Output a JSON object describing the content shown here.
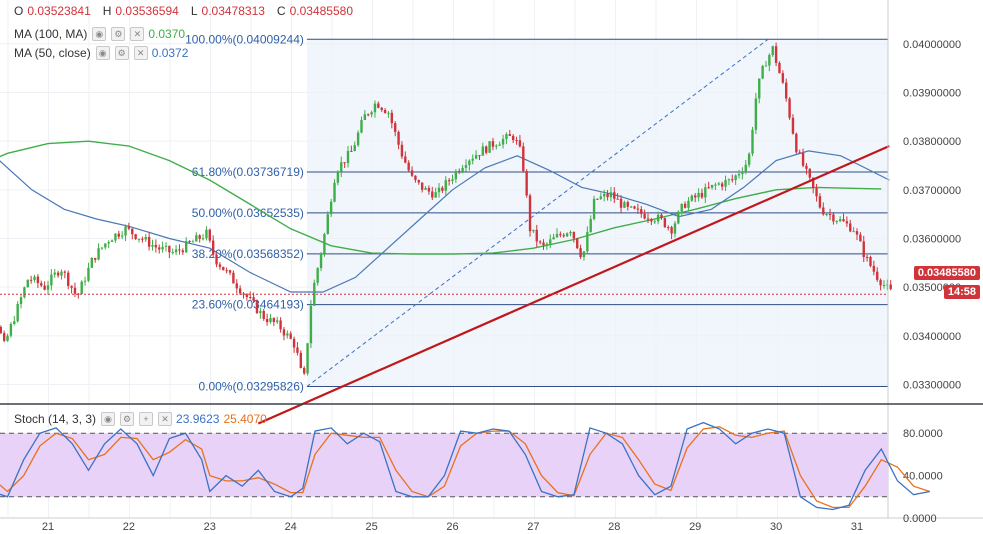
{
  "ohlc": {
    "o_label": "O",
    "o": "0.03523841",
    "h_label": "H",
    "h": "0.03536594",
    "l_label": "L",
    "l": "0.03478313",
    "c_label": "C",
    "c": "0.03485580"
  },
  "indicators": {
    "ma100": {
      "label": "MA (100, MA)",
      "value": "0.0370",
      "color": "#3fae49"
    },
    "ma50": {
      "label": "MA (50, close)",
      "value": "0.0372",
      "color": "#4a78b8"
    },
    "stoch": {
      "label": "Stoch (14, 3, 3)",
      "k": "23.9623",
      "d": "25.4070",
      "k_color": "#3a72c4",
      "d_color": "#e8711d"
    }
  },
  "current_price": {
    "value": "0.03485580",
    "countdown": "14:58",
    "color": "#d0343a"
  },
  "colors": {
    "up": "#3fae49",
    "down": "#d0343a",
    "fib": "#2f4d86",
    "trendline": "#c0171b",
    "stoch_band": "#e8d2f7"
  },
  "chart_data": [
    {
      "type": "candlestick",
      "ylim": [
        0.0326,
        0.0409
      ],
      "y_ticks": [
        "0.03300000",
        "0.03400000",
        "0.03500000",
        "0.03600000",
        "0.03700000",
        "0.03800000",
        "0.03900000",
        "0.04000000"
      ],
      "x_ticks": [
        "21",
        "22",
        "23",
        "24",
        "25",
        "26",
        "27",
        "28",
        "29",
        "30",
        "31"
      ],
      "fibonacci": [
        {
          "label": "100.00%(0.04009244)",
          "value": 0.04009244
        },
        {
          "label": "61.80%(0.03736719)",
          "value": 0.03736719
        },
        {
          "label": "50.00%(0.03652535)",
          "value": 0.03652535
        },
        {
          "label": "38.20%(0.03568352)",
          "value": 0.03568352
        },
        {
          "label": "23.60%(0.03464193)",
          "value": 0.03464193
        },
        {
          "label": "0.00%(0.03295826)",
          "value": 0.03295826
        }
      ],
      "fib_range_days": [
        24.2,
        33.0
      ],
      "swing_line": {
        "from": [
          24.2,
          0.03295826
        ],
        "to": [
          29.9,
          0.04009244
        ]
      },
      "trendline": {
        "from": [
          23.6,
          0.0322
        ],
        "to": [
          31.4,
          0.0379
        ]
      },
      "ma100": [
        [
          20.0,
          0.0374
        ],
        [
          20.5,
          0.03775
        ],
        [
          21.0,
          0.03795
        ],
        [
          21.5,
          0.038
        ],
        [
          22.0,
          0.0379
        ],
        [
          22.5,
          0.0376
        ],
        [
          23.0,
          0.0372
        ],
        [
          23.5,
          0.0367
        ],
        [
          24.0,
          0.0362
        ],
        [
          24.5,
          0.03585
        ],
        [
          25.0,
          0.0357
        ],
        [
          25.5,
          0.03568
        ],
        [
          26.0,
          0.03568
        ],
        [
          26.5,
          0.0357
        ],
        [
          27.0,
          0.0358
        ],
        [
          27.5,
          0.03598
        ],
        [
          28.0,
          0.03622
        ],
        [
          28.5,
          0.0364
        ],
        [
          29.0,
          0.0366
        ],
        [
          29.5,
          0.03682
        ],
        [
          30.0,
          0.037
        ],
        [
          30.5,
          0.03705
        ],
        [
          31.0,
          0.03703
        ],
        [
          31.3,
          0.03702
        ]
      ],
      "ma50": [
        [
          20.0,
          0.0383
        ],
        [
          20.4,
          0.0376
        ],
        [
          20.8,
          0.037
        ],
        [
          21.2,
          0.0366
        ],
        [
          21.6,
          0.0364
        ],
        [
          22.0,
          0.03625
        ],
        [
          22.5,
          0.036
        ],
        [
          23.0,
          0.0358
        ],
        [
          23.5,
          0.0353
        ],
        [
          24.0,
          0.0349
        ],
        [
          24.4,
          0.0349
        ],
        [
          24.8,
          0.0352
        ],
        [
          25.2,
          0.0358
        ],
        [
          25.6,
          0.0364
        ],
        [
          26.0,
          0.037
        ],
        [
          26.4,
          0.03745
        ],
        [
          26.8,
          0.0377
        ],
        [
          27.2,
          0.0374
        ],
        [
          27.6,
          0.03705
        ],
        [
          28.0,
          0.0369
        ],
        [
          28.4,
          0.0367
        ],
        [
          28.8,
          0.03645
        ],
        [
          29.2,
          0.0366
        ],
        [
          29.6,
          0.03705
        ],
        [
          30.0,
          0.0376
        ],
        [
          30.4,
          0.0378
        ],
        [
          30.8,
          0.0377
        ],
        [
          31.1,
          0.03745
        ],
        [
          31.4,
          0.0372
        ]
      ],
      "candles_path": [
        [
          20.0,
          0.0361
        ],
        [
          20.2,
          0.0354
        ],
        [
          20.35,
          0.0346
        ],
        [
          20.5,
          0.0338
        ],
        [
          20.65,
          0.0345
        ],
        [
          20.8,
          0.0352
        ],
        [
          21.0,
          0.035
        ],
        [
          21.2,
          0.0354
        ],
        [
          21.4,
          0.0348
        ],
        [
          21.6,
          0.0356
        ],
        [
          21.8,
          0.036
        ],
        [
          22.0,
          0.0362
        ],
        [
          22.2,
          0.036
        ],
        [
          22.4,
          0.0358
        ],
        [
          22.6,
          0.0357
        ],
        [
          22.8,
          0.0359
        ],
        [
          23.0,
          0.0361
        ],
        [
          23.1,
          0.0356
        ],
        [
          23.3,
          0.0352
        ],
        [
          23.5,
          0.0348
        ],
        [
          23.7,
          0.0344
        ],
        [
          23.9,
          0.0342
        ],
        [
          24.1,
          0.0338
        ],
        [
          24.2,
          0.033
        ],
        [
          24.3,
          0.0348
        ],
        [
          24.45,
          0.036
        ],
        [
          24.6,
          0.0374
        ],
        [
          24.8,
          0.0378
        ],
        [
          24.95,
          0.0385
        ],
        [
          25.1,
          0.0388
        ],
        [
          25.25,
          0.0386
        ],
        [
          25.4,
          0.0378
        ],
        [
          25.55,
          0.0372
        ],
        [
          25.7,
          0.037
        ],
        [
          25.85,
          0.0369
        ],
        [
          26.0,
          0.0372
        ],
        [
          26.2,
          0.0376
        ],
        [
          26.4,
          0.0378
        ],
        [
          26.6,
          0.038
        ],
        [
          26.8,
          0.0381
        ],
        [
          26.9,
          0.0377
        ],
        [
          27.0,
          0.0362
        ],
        [
          27.15,
          0.0358
        ],
        [
          27.3,
          0.036
        ],
        [
          27.5,
          0.0362
        ],
        [
          27.65,
          0.0356
        ],
        [
          27.8,
          0.0368
        ],
        [
          28.0,
          0.0369
        ],
        [
          28.2,
          0.0366
        ],
        [
          28.4,
          0.0365
        ],
        [
          28.6,
          0.0364
        ],
        [
          28.75,
          0.0362
        ],
        [
          28.9,
          0.0367
        ],
        [
          29.1,
          0.0369
        ],
        [
          29.3,
          0.0371
        ],
        [
          29.5,
          0.0372
        ],
        [
          29.7,
          0.0376
        ],
        [
          29.8,
          0.039
        ],
        [
          29.9,
          0.0396
        ],
        [
          30.0,
          0.0399
        ],
        [
          30.15,
          0.039
        ],
        [
          30.3,
          0.0378
        ],
        [
          30.45,
          0.0372
        ],
        [
          30.6,
          0.0366
        ],
        [
          30.8,
          0.0364
        ],
        [
          31.0,
          0.0362
        ],
        [
          31.15,
          0.0356
        ],
        [
          31.3,
          0.0352
        ],
        [
          31.45,
          0.0349
        ]
      ],
      "stoch_ylim": [
        0,
        100
      ],
      "stoch_ticks": [
        "80.0000",
        "40.0000",
        "0.0000"
      ],
      "stoch_bands": [
        80,
        20
      ],
      "stoch_k": [
        [
          20.0,
          40
        ],
        [
          20.15,
          60
        ],
        [
          20.3,
          25
        ],
        [
          20.5,
          20
        ],
        [
          20.7,
          55
        ],
        [
          20.9,
          80
        ],
        [
          21.1,
          85
        ],
        [
          21.3,
          70
        ],
        [
          21.5,
          45
        ],
        [
          21.7,
          70
        ],
        [
          21.9,
          84
        ],
        [
          22.1,
          70
        ],
        [
          22.3,
          40
        ],
        [
          22.5,
          75
        ],
        [
          22.7,
          80
        ],
        [
          22.9,
          55
        ],
        [
          23.0,
          25
        ],
        [
          23.2,
          40
        ],
        [
          23.4,
          30
        ],
        [
          23.6,
          45
        ],
        [
          23.8,
          25
        ],
        [
          24.0,
          20
        ],
        [
          24.15,
          28
        ],
        [
          24.3,
          82
        ],
        [
          24.5,
          85
        ],
        [
          24.7,
          70
        ],
        [
          24.9,
          80
        ],
        [
          25.1,
          72
        ],
        [
          25.3,
          25
        ],
        [
          25.5,
          20
        ],
        [
          25.7,
          20
        ],
        [
          25.9,
          40
        ],
        [
          26.1,
          82
        ],
        [
          26.3,
          80
        ],
        [
          26.5,
          84
        ],
        [
          26.7,
          82
        ],
        [
          26.9,
          60
        ],
        [
          27.1,
          25
        ],
        [
          27.3,
          20
        ],
        [
          27.5,
          22
        ],
        [
          27.7,
          85
        ],
        [
          27.9,
          80
        ],
        [
          28.1,
          70
        ],
        [
          28.3,
          40
        ],
        [
          28.5,
          22
        ],
        [
          28.7,
          30
        ],
        [
          28.9,
          84
        ],
        [
          29.1,
          90
        ],
        [
          29.3,
          84
        ],
        [
          29.5,
          70
        ],
        [
          29.7,
          80
        ],
        [
          29.9,
          84
        ],
        [
          30.1,
          80
        ],
        [
          30.3,
          20
        ],
        [
          30.5,
          10
        ],
        [
          30.7,
          8
        ],
        [
          30.9,
          12
        ],
        [
          31.1,
          45
        ],
        [
          31.3,
          65
        ],
        [
          31.5,
          35
        ],
        [
          31.7,
          22
        ],
        [
          31.9,
          25
        ]
      ],
      "stoch_d": [
        [
          20.0,
          45
        ],
        [
          20.15,
          52
        ],
        [
          20.3,
          38
        ],
        [
          20.5,
          25
        ],
        [
          20.7,
          40
        ],
        [
          20.9,
          68
        ],
        [
          21.1,
          80
        ],
        [
          21.3,
          75
        ],
        [
          21.5,
          55
        ],
        [
          21.7,
          60
        ],
        [
          21.9,
          76
        ],
        [
          22.1,
          75
        ],
        [
          22.3,
          55
        ],
        [
          22.5,
          62
        ],
        [
          22.7,
          74
        ],
        [
          22.9,
          65
        ],
        [
          23.0,
          40
        ],
        [
          23.2,
          35
        ],
        [
          23.4,
          35
        ],
        [
          23.6,
          38
        ],
        [
          23.8,
          32
        ],
        [
          24.0,
          24
        ],
        [
          24.15,
          24
        ],
        [
          24.3,
          60
        ],
        [
          24.5,
          80
        ],
        [
          24.7,
          78
        ],
        [
          24.9,
          76
        ],
        [
          25.1,
          76
        ],
        [
          25.3,
          45
        ],
        [
          25.5,
          25
        ],
        [
          25.7,
          20
        ],
        [
          25.9,
          30
        ],
        [
          26.1,
          68
        ],
        [
          26.3,
          80
        ],
        [
          26.5,
          82
        ],
        [
          26.7,
          82
        ],
        [
          26.9,
          70
        ],
        [
          27.1,
          40
        ],
        [
          27.3,
          24
        ],
        [
          27.5,
          21
        ],
        [
          27.7,
          60
        ],
        [
          27.9,
          80
        ],
        [
          28.1,
          76
        ],
        [
          28.3,
          55
        ],
        [
          28.5,
          32
        ],
        [
          28.7,
          26
        ],
        [
          28.9,
          66
        ],
        [
          29.1,
          84
        ],
        [
          29.3,
          86
        ],
        [
          29.5,
          78
        ],
        [
          29.7,
          76
        ],
        [
          29.9,
          80
        ],
        [
          30.1,
          82
        ],
        [
          30.3,
          40
        ],
        [
          30.5,
          16
        ],
        [
          30.7,
          10
        ],
        [
          30.9,
          10
        ],
        [
          31.1,
          30
        ],
        [
          31.3,
          55
        ],
        [
          31.5,
          48
        ],
        [
          31.7,
          30
        ],
        [
          31.9,
          25
        ]
      ]
    }
  ]
}
